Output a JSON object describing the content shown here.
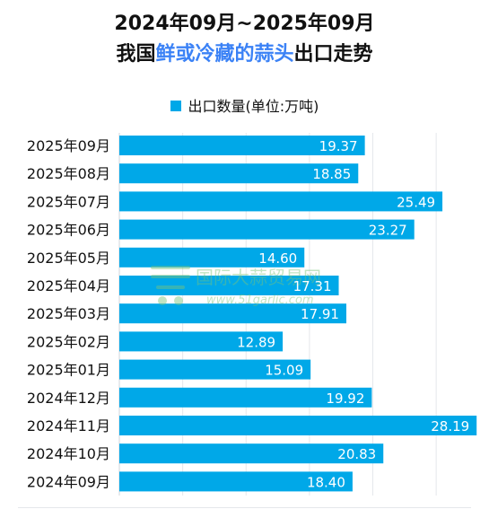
{
  "header": {
    "title": "2024年09月~2025年09月",
    "subtitle_prefix": "我国",
    "subtitle_highlight": "鲜或冷藏的蒜头",
    "subtitle_suffix": "出口走势"
  },
  "legend": {
    "label": "出口数量(单位:万吨)"
  },
  "watermark": {
    "text": "国际大蒜贸易网",
    "url": "www.51garlic.com"
  },
  "colors": {
    "bar": "#00a8e8",
    "highlight": "#3b82f6",
    "grid": "#e5e7eb",
    "watermark": "#7ac47a"
  },
  "chart_data": {
    "type": "bar",
    "orientation": "horizontal",
    "categories": [
      "2025年09月",
      "2025年08月",
      "2025年07月",
      "2025年06月",
      "2025年05月",
      "2025年04月",
      "2025年03月",
      "2025年02月",
      "2025年01月",
      "2024年12月",
      "2024年11月",
      "2024年10月",
      "2024年09月"
    ],
    "series": [
      {
        "name": "出口数量(单位:万吨)",
        "values": [
          19.37,
          18.85,
          25.49,
          23.27,
          14.6,
          17.31,
          17.91,
          12.89,
          15.09,
          19.92,
          28.19,
          20.83,
          18.4
        ],
        "labels": [
          "19.37",
          "18.85",
          "25.49",
          "23.27",
          "14.60",
          "17.31",
          "17.91",
          "12.89",
          "15.09",
          "19.92",
          "28.19",
          "20.83",
          "18.40"
        ]
      }
    ],
    "xlim": [
      0,
      28.6
    ],
    "grid": true,
    "legend_position": "top-center"
  }
}
